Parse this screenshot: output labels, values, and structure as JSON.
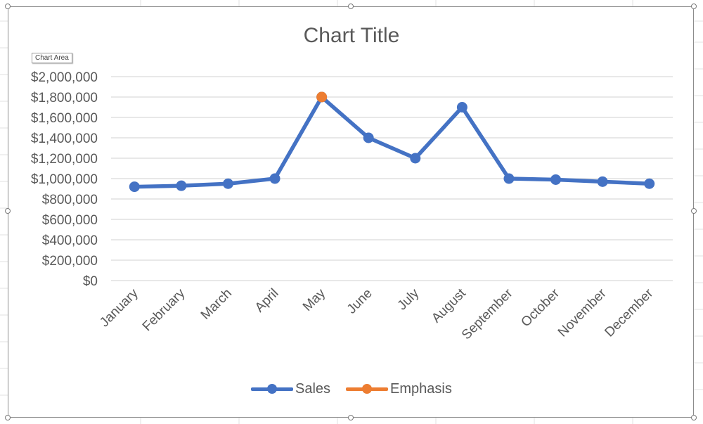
{
  "chart": {
    "title": "Chart Title",
    "tooltip": "Chart Area",
    "legend": [
      {
        "name": "Sales",
        "color": "#4472C4"
      },
      {
        "name": "Emphasis",
        "color": "#ED7D31"
      }
    ]
  },
  "chart_data": {
    "type": "line",
    "title": "Chart Title",
    "xlabel": "",
    "ylabel": "",
    "categories": [
      "January",
      "February",
      "March",
      "April",
      "May",
      "June",
      "July",
      "August",
      "September",
      "October",
      "November",
      "December"
    ],
    "series": [
      {
        "name": "Sales",
        "color": "#4472C4",
        "values": [
          920000,
          930000,
          950000,
          1000000,
          1800000,
          1400000,
          1200000,
          1700000,
          1000000,
          990000,
          970000,
          950000
        ]
      },
      {
        "name": "Emphasis",
        "color": "#ED7D31",
        "values": [
          null,
          null,
          null,
          null,
          1800000,
          null,
          null,
          null,
          null,
          null,
          null,
          null
        ]
      }
    ],
    "y_ticks": [
      "$0",
      "$200,000",
      "$400,000",
      "$600,000",
      "$800,000",
      "$1,000,000",
      "$1,200,000",
      "$1,400,000",
      "$1,600,000",
      "$1,800,000",
      "$2,000,000"
    ],
    "ylim": [
      0,
      2000000
    ],
    "grid": true,
    "legend_position": "bottom"
  }
}
